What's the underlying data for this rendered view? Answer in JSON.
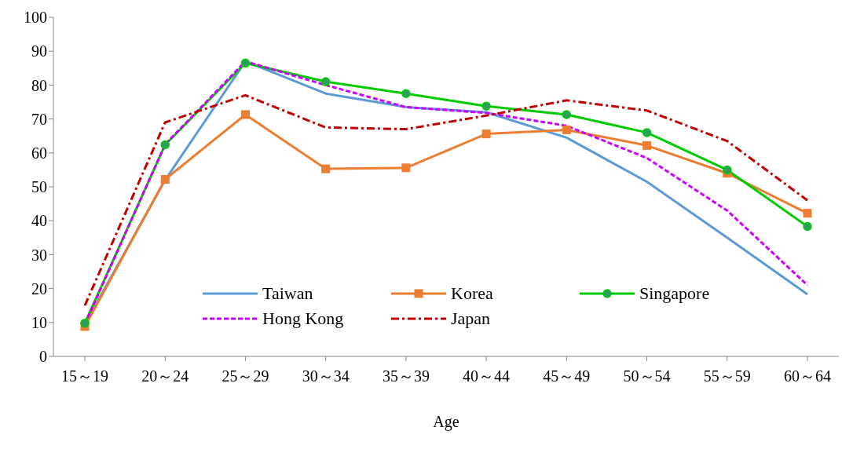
{
  "chart_data": {
    "type": "line",
    "xlabel": "Age",
    "categories": [
      "15～19",
      "20～24",
      "25～29",
      "30～34",
      "35～39",
      "40～44",
      "45～49",
      "50～54",
      "55～59",
      "60～64"
    ],
    "ylim": [
      0,
      100
    ],
    "yticks": [
      0,
      10,
      20,
      30,
      40,
      50,
      60,
      70,
      80,
      90,
      100
    ],
    "grid": false,
    "legend": "bottom",
    "series": [
      {
        "name": "Taiwan",
        "color": "#5b9bd5",
        "marker": "none",
        "line_style": "solid",
        "values": [
          9.5,
          52,
          87,
          77.5,
          73.5,
          72,
          64.5,
          51.5,
          35,
          18.3
        ]
      },
      {
        "name": "Korea",
        "color": "#ed7d31",
        "marker": "square",
        "line_style": "solid",
        "values": [
          8.8,
          52.2,
          71.3,
          55.3,
          55.6,
          65.6,
          66.8,
          62.2,
          54,
          42.2
        ]
      },
      {
        "name": "Singapore",
        "color": "#00cc00",
        "marker": "circle",
        "line_style": "solid",
        "values": [
          9.8,
          62.4,
          86.5,
          81,
          77.5,
          73.8,
          71.3,
          66,
          55,
          38.3
        ]
      },
      {
        "name": "Hong Kong",
        "color": "#cc00ff",
        "marker": "none",
        "line_style": "dashed",
        "values": [
          9.5,
          62.5,
          87,
          80,
          73.5,
          71.8,
          68,
          58.5,
          43,
          21
        ]
      },
      {
        "name": "Japan",
        "color": "#c00000",
        "marker": "none",
        "line_style": "dashdot",
        "values": [
          15,
          69,
          77,
          67.5,
          67,
          71,
          75.5,
          72.5,
          63.5,
          46
        ]
      }
    ]
  }
}
